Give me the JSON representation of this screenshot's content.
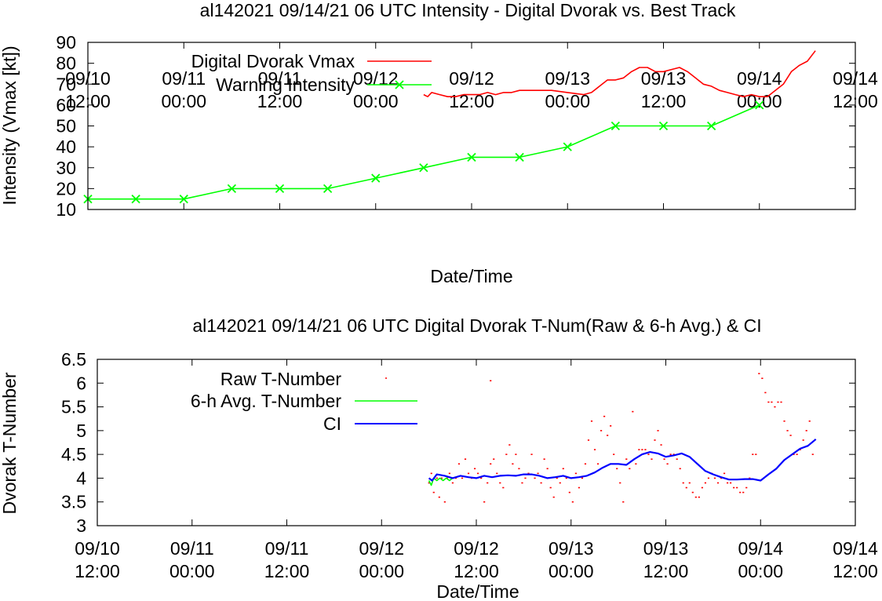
{
  "chart_data": [
    {
      "type": "line",
      "title": "al142021 09/14/21  06 UTC Intensity - Digital Dvorak vs. Best Track",
      "xlabel": "Date/Time",
      "ylabel": "Intensity (Vmax [kt])",
      "xlim_hours": [
        0,
        96
      ],
      "ylim": [
        10,
        90
      ],
      "yticks": [
        "10",
        "20",
        "30",
        "40",
        "50",
        "60",
        "70",
        "80",
        "90"
      ],
      "xticks": [
        {
          "date": "09/10",
          "time": "12:00"
        },
        {
          "date": "09/11",
          "time": "00:00"
        },
        {
          "date": "09/11",
          "time": "12:00"
        },
        {
          "date": "09/12",
          "time": "00:00"
        },
        {
          "date": "09/12",
          "time": "12:00"
        },
        {
          "date": "09/13",
          "time": "00:00"
        },
        {
          "date": "09/13",
          "time": "12:00"
        },
        {
          "date": "09/14",
          "time": "00:00"
        },
        {
          "date": "09/14",
          "time": "12:00"
        }
      ],
      "legend_placement": "top-left",
      "series": [
        {
          "name": "Digital Dvorak Vmax",
          "color": "#ff0000",
          "style": "line",
          "points": [
            [
              42.0,
              65
            ],
            [
              42.5,
              64
            ],
            [
              43.0,
              66
            ],
            [
              44.0,
              65
            ],
            [
              45.0,
              64
            ],
            [
              46.0,
              64
            ],
            [
              47.0,
              65
            ],
            [
              48.0,
              65
            ],
            [
              49.0,
              65
            ],
            [
              50.0,
              66
            ],
            [
              51.0,
              65
            ],
            [
              52.0,
              66
            ],
            [
              53.0,
              66
            ],
            [
              54.0,
              67
            ],
            [
              56.0,
              67
            ],
            [
              58.0,
              67
            ],
            [
              60.0,
              66
            ],
            [
              62.0,
              65
            ],
            [
              63.0,
              66
            ],
            [
              64.0,
              69
            ],
            [
              65.0,
              72
            ],
            [
              66.0,
              72
            ],
            [
              67.0,
              73
            ],
            [
              68.0,
              76
            ],
            [
              69.0,
              78
            ],
            [
              70.0,
              78
            ],
            [
              71.0,
              76
            ],
            [
              72.0,
              76
            ],
            [
              73.0,
              77
            ],
            [
              74.0,
              78
            ],
            [
              75.0,
              76
            ],
            [
              76.0,
              73
            ],
            [
              77.0,
              70
            ],
            [
              78.0,
              69
            ],
            [
              79.0,
              67
            ],
            [
              80.0,
              66
            ],
            [
              81.0,
              65
            ],
            [
              82.0,
              64
            ],
            [
              83.0,
              65
            ],
            [
              84.0,
              64
            ],
            [
              85.0,
              64
            ],
            [
              86.0,
              67
            ],
            [
              87.0,
              70
            ],
            [
              88.0,
              76
            ],
            [
              89.0,
              79
            ],
            [
              90.0,
              81
            ],
            [
              91.0,
              86
            ]
          ]
        },
        {
          "name": "Warning Intensity",
          "color": "#00ff00",
          "style": "linespoints",
          "x": [
            0,
            6,
            12,
            18,
            24,
            30,
            36,
            42,
            48,
            54,
            60,
            66,
            72,
            78,
            84
          ],
          "values": [
            15,
            15,
            15,
            20,
            20,
            20,
            25,
            30,
            35,
            35,
            40,
            50,
            50,
            50,
            60
          ]
        }
      ]
    },
    {
      "type": "scatter",
      "title": "al142021 09/14/21  06 UTC Digital Dvorak T-Num(Raw & 6-h Avg.) & CI",
      "xlabel": "Date/Time",
      "ylabel": "Dvorak T-Number",
      "xlim_hours": [
        0,
        96
      ],
      "ylim": [
        3,
        6.5
      ],
      "yticks": [
        "3",
        "3.5",
        "4",
        "4.5",
        "5",
        "5.5",
        "6",
        "6.5"
      ],
      "xticks": [
        {
          "date": "09/10",
          "time": "12:00"
        },
        {
          "date": "09/11",
          "time": "00:00"
        },
        {
          "date": "09/11",
          "time": "12:00"
        },
        {
          "date": "09/12",
          "time": "00:00"
        },
        {
          "date": "09/12",
          "time": "12:00"
        },
        {
          "date": "09/13",
          "time": "00:00"
        },
        {
          "date": "09/13",
          "time": "12:00"
        },
        {
          "date": "09/14",
          "time": "00:00"
        },
        {
          "date": "09/14",
          "time": "12:00"
        }
      ],
      "legend_placement": "top-left",
      "series": [
        {
          "name": "Raw T-Number",
          "color": "#ff0000",
          "style": "dots",
          "points": [
            [
              42.0,
              3.9
            ],
            [
              42.3,
              4.1
            ],
            [
              42.6,
              3.7
            ],
            [
              43.0,
              4.0
            ],
            [
              43.3,
              3.6
            ],
            [
              43.6,
              4.0
            ],
            [
              44.0,
              3.5
            ],
            [
              44.3,
              4.0
            ],
            [
              44.6,
              4.1
            ],
            [
              45.0,
              3.9
            ],
            [
              45.4,
              4.0
            ],
            [
              45.8,
              4.3
            ],
            [
              46.2,
              4.0
            ],
            [
              46.6,
              4.4
            ],
            [
              47.0,
              4.1
            ],
            [
              47.4,
              4.0
            ],
            [
              47.8,
              4.2
            ],
            [
              48.2,
              4.1
            ],
            [
              48.6,
              4.0
            ],
            [
              49.0,
              3.5
            ],
            [
              49.4,
              3.9
            ],
            [
              49.8,
              4.3
            ],
            [
              50.2,
              4.4
            ],
            [
              50.6,
              4.1
            ],
            [
              51.0,
              3.9
            ],
            [
              51.4,
              3.8
            ],
            [
              51.8,
              4.5
            ],
            [
              52.2,
              4.7
            ],
            [
              52.6,
              4.3
            ],
            [
              53.0,
              4.5
            ],
            [
              53.4,
              4.2
            ],
            [
              53.8,
              3.9
            ],
            [
              54.2,
              4.0
            ],
            [
              54.6,
              4.1
            ],
            [
              55.0,
              4.5
            ],
            [
              55.4,
              4.0
            ],
            [
              55.8,
              4.1
            ],
            [
              56.2,
              3.9
            ],
            [
              56.6,
              4.4
            ],
            [
              57.0,
              4.2
            ],
            [
              57.4,
              3.8
            ],
            [
              57.8,
              3.6
            ],
            [
              58.2,
              4.0
            ],
            [
              58.6,
              3.9
            ],
            [
              59.0,
              4.2
            ],
            [
              59.4,
              4.0
            ],
            [
              59.8,
              3.7
            ],
            [
              60.2,
              3.5
            ],
            [
              60.6,
              4.1
            ],
            [
              61.0,
              3.8
            ],
            [
              61.4,
              4.0
            ],
            [
              61.8,
              4.3
            ],
            [
              62.2,
              4.8
            ],
            [
              62.6,
              5.2
            ],
            [
              63.0,
              4.6
            ],
            [
              63.4,
              4.3
            ],
            [
              63.8,
              5.0
            ],
            [
              64.2,
              5.3
            ],
            [
              64.6,
              4.9
            ],
            [
              65.0,
              5.1
            ],
            [
              65.4,
              4.5
            ],
            [
              65.8,
              4.2
            ],
            [
              66.2,
              3.9
            ],
            [
              66.6,
              3.5
            ],
            [
              67.0,
              4.4
            ],
            [
              67.4,
              4.2
            ],
            [
              67.8,
              5.4
            ],
            [
              68.2,
              4.3
            ],
            [
              68.6,
              4.6
            ],
            [
              69.0,
              4.6
            ],
            [
              69.4,
              4.6
            ],
            [
              69.8,
              4.5
            ],
            [
              70.2,
              4.4
            ],
            [
              70.6,
              4.8
            ],
            [
              71.0,
              5.0
            ],
            [
              71.4,
              4.7
            ],
            [
              71.8,
              4.4
            ],
            [
              72.2,
              4.3
            ],
            [
              72.6,
              4.5
            ],
            [
              73.0,
              4.5
            ],
            [
              73.4,
              4.4
            ],
            [
              73.8,
              4.2
            ],
            [
              74.2,
              3.9
            ],
            [
              74.6,
              3.8
            ],
            [
              75.0,
              3.9
            ],
            [
              75.4,
              3.7
            ],
            [
              75.8,
              3.6
            ],
            [
              76.2,
              3.6
            ],
            [
              76.6,
              3.8
            ],
            [
              77.0,
              3.9
            ],
            [
              77.4,
              4.0
            ],
            [
              77.8,
              4.1
            ],
            [
              78.2,
              4.0
            ],
            [
              78.6,
              3.9
            ],
            [
              79.0,
              4.0
            ],
            [
              79.4,
              4.1
            ],
            [
              79.8,
              3.9
            ],
            [
              80.2,
              3.9
            ],
            [
              80.6,
              3.8
            ],
            [
              81.0,
              3.8
            ],
            [
              81.4,
              3.7
            ],
            [
              81.8,
              3.7
            ],
            [
              82.2,
              3.8
            ],
            [
              82.6,
              4.0
            ],
            [
              83.0,
              4.5
            ],
            [
              83.4,
              4.5
            ],
            [
              83.8,
              6.2
            ],
            [
              84.2,
              6.1
            ],
            [
              84.6,
              5.8
            ],
            [
              85.0,
              5.6
            ],
            [
              85.4,
              5.6
            ],
            [
              85.8,
              5.5
            ],
            [
              86.2,
              5.6
            ],
            [
              86.6,
              5.6
            ],
            [
              87.0,
              5.2
            ],
            [
              87.4,
              5.0
            ],
            [
              87.8,
              4.9
            ],
            [
              88.2,
              4.5
            ],
            [
              88.6,
              4.5
            ],
            [
              89.0,
              4.6
            ],
            [
              89.4,
              4.8
            ],
            [
              89.8,
              5.0
            ],
            [
              90.2,
              5.2
            ],
            [
              90.6,
              4.5
            ],
            [
              49.8,
              6.05
            ]
          ]
        },
        {
          "name": "6-h Avg. T-Number",
          "color": "#00ff00",
          "style": "line",
          "points": [
            [
              42.0,
              3.95
            ],
            [
              42.3,
              3.85
            ],
            [
              42.6,
              4.0
            ],
            [
              43.0,
              3.95
            ],
            [
              43.4,
              4.0
            ],
            [
              43.8,
              3.95
            ],
            [
              44.2,
              4.0
            ],
            [
              44.6,
              3.95
            ],
            [
              45.0,
              4.0
            ]
          ]
        },
        {
          "name": "CI",
          "color": "#0000ff",
          "style": "line",
          "points": [
            [
              42.0,
              4.0
            ],
            [
              42.4,
              3.95
            ],
            [
              43.0,
              4.08
            ],
            [
              44.0,
              4.05
            ],
            [
              45.0,
              4.0
            ],
            [
              46.0,
              4.05
            ],
            [
              47.0,
              4.02
            ],
            [
              48.0,
              4.0
            ],
            [
              49.0,
              4.05
            ],
            [
              50.0,
              4.02
            ],
            [
              51.0,
              4.05
            ],
            [
              52.0,
              4.06
            ],
            [
              53.0,
              4.05
            ],
            [
              54.0,
              4.08
            ],
            [
              55.0,
              4.08
            ],
            [
              56.0,
              4.05
            ],
            [
              57.0,
              4.0
            ],
            [
              58.0,
              4.02
            ],
            [
              59.0,
              4.05
            ],
            [
              60.0,
              4.0
            ],
            [
              61.0,
              4.02
            ],
            [
              62.0,
              4.05
            ],
            [
              63.0,
              4.12
            ],
            [
              64.0,
              4.22
            ],
            [
              65.0,
              4.3
            ],
            [
              66.0,
              4.3
            ],
            [
              67.0,
              4.28
            ],
            [
              68.0,
              4.4
            ],
            [
              69.0,
              4.5
            ],
            [
              70.0,
              4.55
            ],
            [
              71.0,
              4.52
            ],
            [
              72.0,
              4.45
            ],
            [
              73.0,
              4.48
            ],
            [
              74.0,
              4.52
            ],
            [
              75.0,
              4.45
            ],
            [
              76.0,
              4.3
            ],
            [
              77.0,
              4.15
            ],
            [
              78.0,
              4.08
            ],
            [
              79.0,
              4.02
            ],
            [
              80.0,
              3.97
            ],
            [
              81.0,
              3.97
            ],
            [
              82.0,
              3.98
            ],
            [
              83.0,
              3.98
            ],
            [
              84.0,
              3.95
            ],
            [
              85.0,
              4.08
            ],
            [
              86.0,
              4.2
            ],
            [
              87.0,
              4.38
            ],
            [
              88.0,
              4.5
            ],
            [
              89.0,
              4.62
            ],
            [
              90.0,
              4.68
            ],
            [
              91.0,
              4.82
            ]
          ]
        }
      ]
    }
  ]
}
